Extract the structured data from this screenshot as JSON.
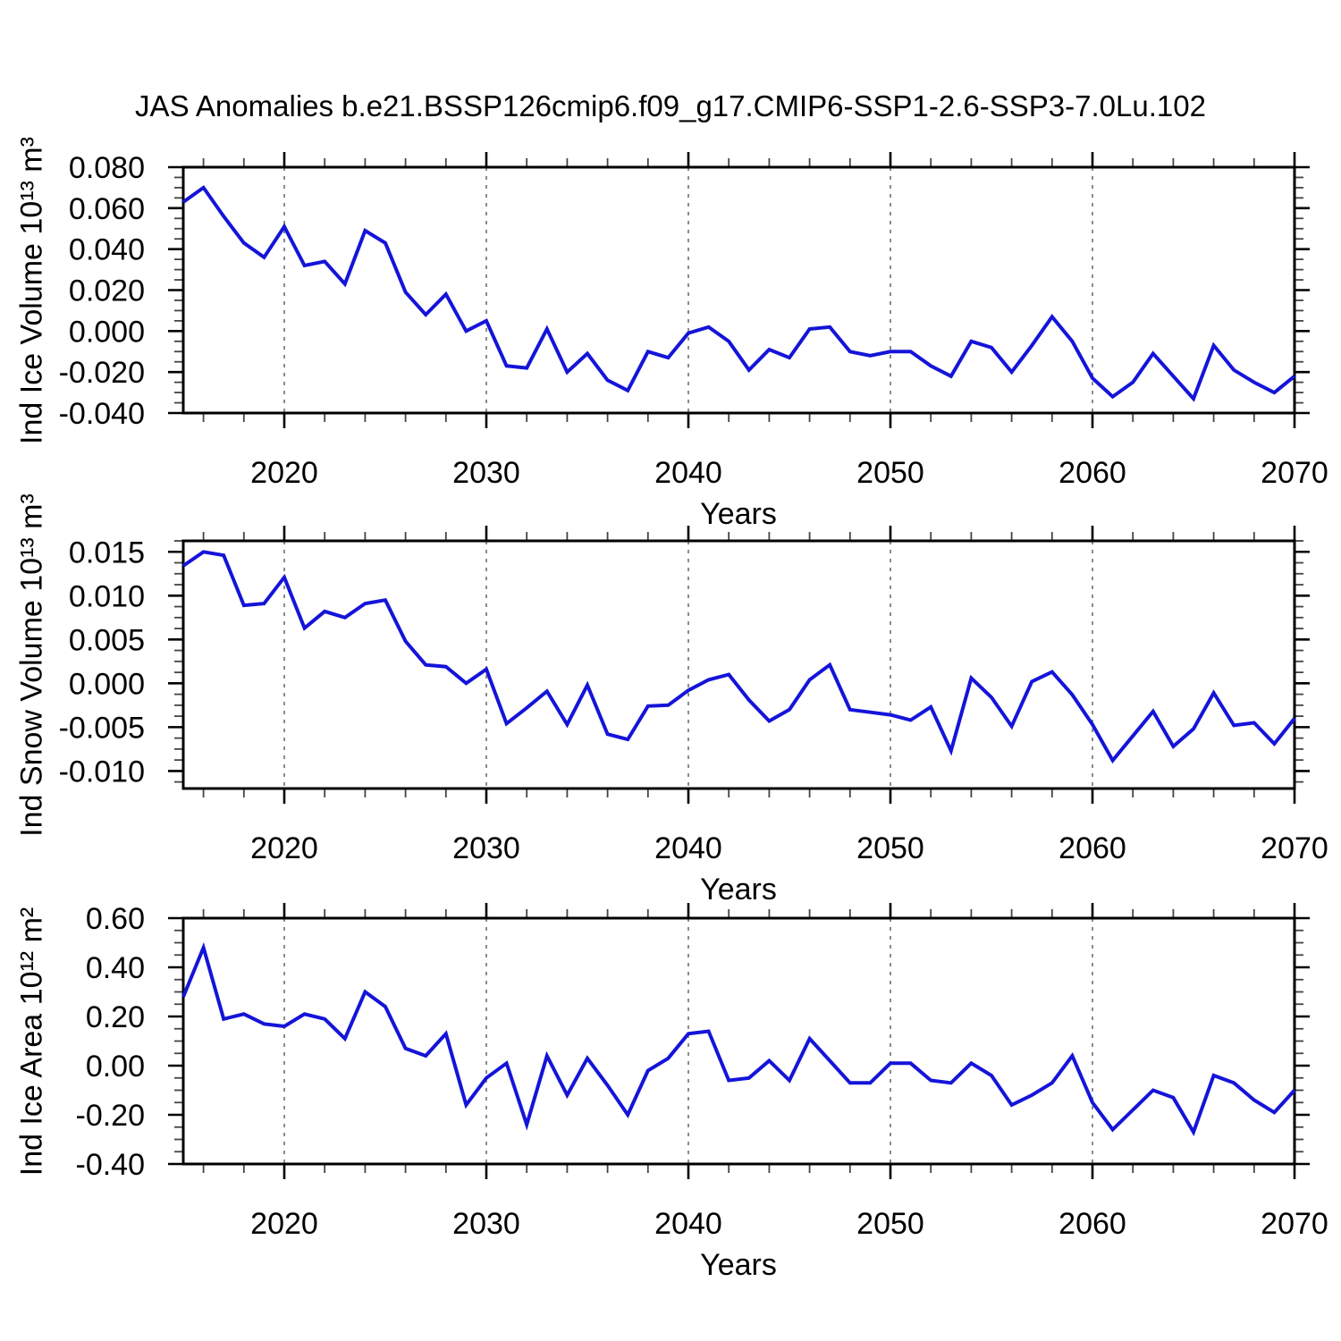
{
  "page": {
    "title": "JAS Anomalies b.e21.BSSP126cmip6.f09_g17.CMIP6-SSP1-2.6-SSP3-7.0Lu.102",
    "background": "#ffffff"
  },
  "styles": {
    "line_color": "#1414d9",
    "grid_color": "#8c8c8c",
    "axis_color": "#000000",
    "minor_tick_color": "#444444"
  },
  "axis": {
    "xlabel": "Years",
    "x_start": 2015,
    "x_end": 2070,
    "xticks": [
      2020,
      2030,
      2040,
      2050,
      2060,
      2070
    ],
    "xtick_labels": [
      "2020",
      "2030",
      "2040",
      "2050",
      "2060",
      "2070"
    ],
    "x_minor_step": 2,
    "grid": "vertical-dashed-at-major-ticks"
  },
  "chart_data": [
    {
      "type": "line",
      "name": "ind-ice-volume",
      "ylabel": "Ind Ice Volume 10¹³ m³",
      "xlabel": "Years",
      "legend": "none",
      "ylim": [
        -0.04,
        0.08
      ],
      "y_minor_step": 0.005,
      "yticks": [
        0.08,
        0.06,
        0.04,
        0.02,
        0.0,
        -0.02,
        -0.04
      ],
      "ytick_labels": [
        "0.080",
        "0.060",
        "0.040",
        "0.020",
        "0.000",
        "-0.020",
        "-0.040"
      ],
      "x": [
        2015,
        2016,
        2017,
        2018,
        2019,
        2020,
        2021,
        2022,
        2023,
        2024,
        2025,
        2026,
        2027,
        2028,
        2029,
        2030,
        2031,
        2032,
        2033,
        2034,
        2035,
        2036,
        2037,
        2038,
        2039,
        2040,
        2041,
        2042,
        2043,
        2044,
        2045,
        2046,
        2047,
        2048,
        2049,
        2050,
        2051,
        2052,
        2053,
        2054,
        2055,
        2056,
        2057,
        2058,
        2059,
        2060,
        2061,
        2062,
        2063,
        2064,
        2065,
        2066,
        2067,
        2068,
        2069,
        2070
      ],
      "values": [
        0.063,
        0.07,
        0.056,
        0.043,
        0.036,
        0.051,
        0.032,
        0.034,
        0.023,
        0.049,
        0.043,
        0.019,
        0.008,
        0.018,
        0.0,
        0.005,
        -0.017,
        -0.018,
        0.001,
        -0.02,
        -0.011,
        -0.024,
        -0.029,
        -0.01,
        -0.013,
        -0.001,
        0.002,
        -0.005,
        -0.019,
        -0.009,
        -0.013,
        0.001,
        0.002,
        -0.01,
        -0.012,
        -0.01,
        -0.01,
        -0.017,
        -0.022,
        -0.005,
        -0.008,
        -0.02,
        -0.007,
        0.007,
        -0.005,
        -0.023,
        -0.032,
        -0.025,
        -0.011,
        -0.022,
        -0.033,
        -0.007,
        -0.019,
        -0.025,
        -0.03,
        -0.022
      ]
    },
    {
      "type": "line",
      "name": "ind-snow-volume",
      "ylabel": "Ind Snow Volume 10¹³ m³",
      "xlabel": "Years",
      "legend": "none",
      "ylim": [
        -0.012,
        0.01625
      ],
      "y_minor_step": 0.00125,
      "yticks": [
        0.015,
        0.01,
        0.005,
        0.0,
        -0.005,
        -0.01
      ],
      "ytick_labels": [
        "0.015",
        "0.010",
        "0.005",
        "0.000",
        "-0.005",
        "-0.010"
      ],
      "x": [
        2015,
        2016,
        2017,
        2018,
        2019,
        2020,
        2021,
        2022,
        2023,
        2024,
        2025,
        2026,
        2027,
        2028,
        2029,
        2030,
        2031,
        2032,
        2033,
        2034,
        2035,
        2036,
        2037,
        2038,
        2039,
        2040,
        2041,
        2042,
        2043,
        2044,
        2045,
        2046,
        2047,
        2048,
        2049,
        2050,
        2051,
        2052,
        2053,
        2054,
        2055,
        2056,
        2057,
        2058,
        2059,
        2060,
        2061,
        2062,
        2063,
        2064,
        2065,
        2066,
        2067,
        2068,
        2069,
        2070
      ],
      "values": [
        0.0134,
        0.015,
        0.0146,
        0.0089,
        0.0091,
        0.0121,
        0.0063,
        0.0082,
        0.0075,
        0.0091,
        0.0095,
        0.0048,
        0.0021,
        0.0019,
        0.0,
        0.0016,
        -0.0046,
        -0.0028,
        -0.0009,
        -0.0047,
        -0.0002,
        -0.0058,
        -0.0064,
        -0.0026,
        -0.0025,
        -0.0008,
        0.0004,
        0.001,
        -0.0019,
        -0.0043,
        -0.003,
        0.0004,
        0.0021,
        -0.003,
        -0.0033,
        -0.0036,
        -0.0042,
        -0.0027,
        -0.0077,
        0.0006,
        -0.0016,
        -0.0049,
        0.0002,
        0.0013,
        -0.0013,
        -0.0047,
        -0.0088,
        -0.006,
        -0.0032,
        -0.0072,
        -0.0052,
        -0.0011,
        -0.0048,
        -0.0045,
        -0.0069,
        -0.004
      ]
    },
    {
      "type": "line",
      "name": "ind-ice-area",
      "ylabel": "Ind Ice Area 10¹² m²",
      "xlabel": "Years",
      "legend": "none",
      "ylim": [
        -0.4,
        0.6
      ],
      "y_minor_step": 0.05,
      "yticks": [
        0.6,
        0.4,
        0.2,
        0.0,
        -0.2,
        -0.4
      ],
      "ytick_labels": [
        "0.60",
        "0.40",
        "0.20",
        "0.00",
        "-0.20",
        "-0.40"
      ],
      "x": [
        2015,
        2016,
        2017,
        2018,
        2019,
        2020,
        2021,
        2022,
        2023,
        2024,
        2025,
        2026,
        2027,
        2028,
        2029,
        2030,
        2031,
        2032,
        2033,
        2034,
        2035,
        2036,
        2037,
        2038,
        2039,
        2040,
        2041,
        2042,
        2043,
        2044,
        2045,
        2046,
        2047,
        2048,
        2049,
        2050,
        2051,
        2052,
        2053,
        2054,
        2055,
        2056,
        2057,
        2058,
        2059,
        2060,
        2061,
        2062,
        2063,
        2064,
        2065,
        2066,
        2067,
        2068,
        2069,
        2070
      ],
      "values": [
        0.28,
        0.48,
        0.19,
        0.21,
        0.17,
        0.16,
        0.21,
        0.19,
        0.11,
        0.3,
        0.24,
        0.07,
        0.04,
        0.13,
        -0.16,
        -0.05,
        0.01,
        -0.24,
        0.04,
        -0.12,
        0.03,
        -0.08,
        -0.2,
        -0.02,
        0.03,
        0.13,
        0.14,
        -0.06,
        -0.05,
        0.02,
        -0.06,
        0.11,
        0.02,
        -0.07,
        -0.07,
        0.01,
        0.01,
        -0.06,
        -0.07,
        0.01,
        -0.04,
        -0.16,
        -0.12,
        -0.07,
        0.04,
        -0.15,
        -0.26,
        -0.18,
        -0.1,
        -0.13,
        -0.27,
        -0.04,
        -0.07,
        -0.14,
        -0.19,
        -0.1
      ]
    }
  ]
}
